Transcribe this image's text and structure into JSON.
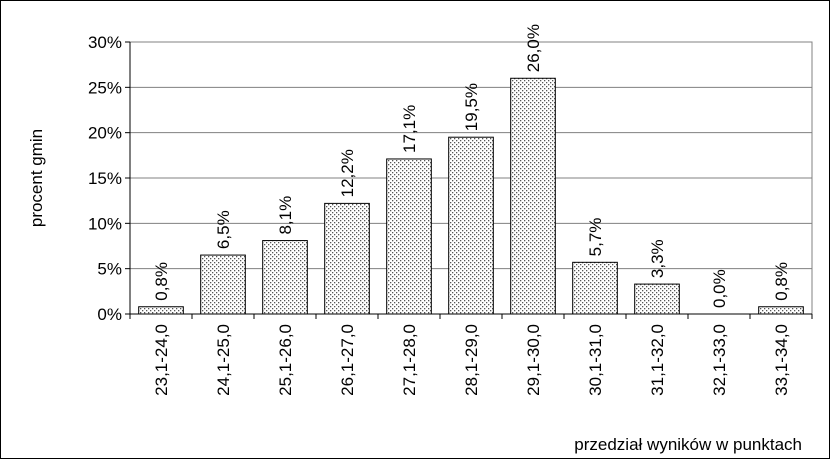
{
  "chart_data": {
    "type": "bar",
    "title": "",
    "ylabel": "procent gmin",
    "xlabel": "przedział wyników w punktach",
    "ylim": [
      0,
      30
    ],
    "yticks": [
      0,
      5,
      10,
      15,
      20,
      25,
      30
    ],
    "ytick_labels": [
      "0%",
      "5%",
      "10%",
      "15%",
      "20%",
      "25%",
      "30%"
    ],
    "grid": true,
    "categories": [
      "23,1-24,0",
      "24,1-25,0",
      "25,1-26,0",
      "26,1-27,0",
      "27,1-28,0",
      "28,1-29,0",
      "29,1-30,0",
      "30,1-31,0",
      "31,1-32,0",
      "32,1-33,0",
      "33,1-34,0"
    ],
    "values": [
      0.8,
      6.5,
      8.1,
      12.2,
      17.1,
      19.5,
      26.0,
      5.7,
      3.3,
      0.0,
      0.8
    ],
    "data_labels": [
      "0,8%",
      "6,5%",
      "8,1%",
      "12,2%",
      "17,1%",
      "19,5%",
      "26,0%",
      "5,7%",
      "3,3%",
      "0,0%",
      "0,8%"
    ],
    "bar_fill": "dotted pattern",
    "colors": {
      "bar_dots": "#555555",
      "bar_edge": "#000000",
      "grid": "#808080"
    }
  }
}
